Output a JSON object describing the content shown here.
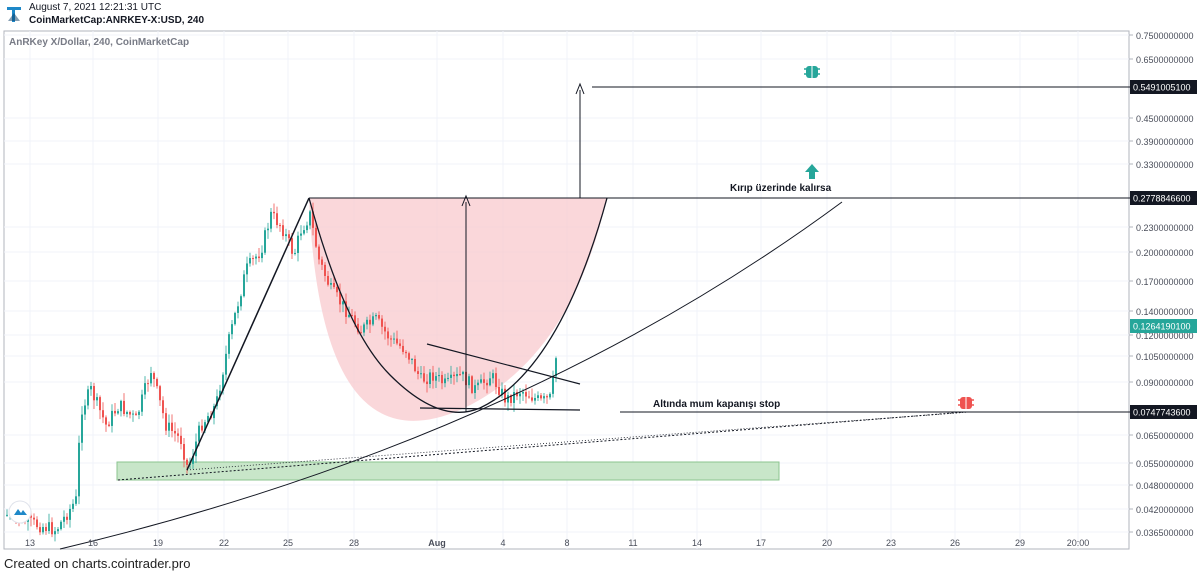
{
  "header": {
    "timestamp": "August 7, 2021 12:21:31 UTC",
    "symbol": "CoinMarketCap:ANRKEY-X:USD, 240"
  },
  "footer": {
    "text": "Created on charts.cointrader.pro"
  },
  "colors": {
    "up_candle": "#26a69a",
    "down_candle": "#ef5350",
    "cup_fill": "#f8c9cd",
    "support_zone": "#c8e6c9",
    "price_tag_bg": "#131722",
    "last_price_bg": "#26a69a",
    "target_icon": "#26a69a",
    "stop_icon": "#ef5350"
  },
  "chart_data": {
    "type": "candlestick",
    "title": "AnRKey X/Dollar, 240, CoinMarketCap",
    "y_scale": "log",
    "ylim": [
      0.0365,
      0.75
    ],
    "x_tick_labels": [
      "13",
      "16",
      "19",
      "22",
      "25",
      "28",
      "Aug",
      "4",
      "8",
      "11",
      "14",
      "17",
      "20",
      "23",
      "26",
      "29",
      "20:00"
    ],
    "y_tick_labels": [
      "0.7500000000",
      "0.6500000000",
      "0.4500000000",
      "0.3900000000",
      "0.3300000000",
      "0.2300000000",
      "0.2000000000",
      "0.1700000000",
      "0.1400000000",
      "0.1200000000",
      "0.1050000000",
      "0.0900000000",
      "0.0650000000",
      "0.0550000000",
      "0.0480000000",
      "0.0420000000",
      "0.0365000000"
    ],
    "price_tags": [
      {
        "label": "0.5491005100",
        "value": 0.5491,
        "style": "dark"
      },
      {
        "label": "0.2778846600",
        "value": 0.2779,
        "style": "dark"
      },
      {
        "label": "0.1264190100",
        "value": 0.1264,
        "style": "last"
      },
      {
        "label": "0.0747743600",
        "value": 0.0748,
        "style": "dark"
      }
    ],
    "annotations": {
      "breakout_text": "Kırıp üzerinde kalırsa",
      "stop_text": "Altında mum kapanışı stop"
    },
    "price_path": [
      {
        "date": "Jul 12",
        "close": 0.04
      },
      {
        "date": "Jul 14",
        "close": 0.038
      },
      {
        "date": "Jul 15",
        "close": 0.075
      },
      {
        "date": "Jul 16",
        "close": 0.07
      },
      {
        "date": "Jul 18",
        "close": 0.09
      },
      {
        "date": "Jul 20",
        "close": 0.055
      },
      {
        "date": "Jul 22",
        "close": 0.11
      },
      {
        "date": "Jul 23",
        "close": 0.175
      },
      {
        "date": "Jul 24",
        "close": 0.25
      },
      {
        "date": "Jul 25",
        "close": 0.21
      },
      {
        "date": "Jul 26",
        "close": 0.23
      },
      {
        "date": "Jul 27",
        "close": 0.16
      },
      {
        "date": "Jul 29",
        "close": 0.14
      },
      {
        "date": "Jul 31",
        "close": 0.1
      },
      {
        "date": "Aug 2",
        "close": 0.09
      },
      {
        "date": "Aug 4",
        "close": 0.078
      },
      {
        "date": "Aug 6",
        "close": 0.082
      },
      {
        "date": "Aug 7",
        "close": 0.126
      }
    ]
  }
}
